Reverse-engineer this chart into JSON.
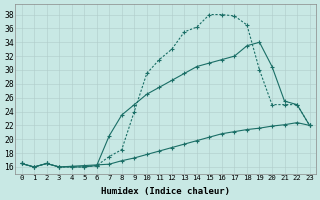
{
  "xlabel": "Humidex (Indice chaleur)",
  "bg_color": "#c8e8e4",
  "line_color": "#1a6e66",
  "xlim": [
    -0.5,
    23.5
  ],
  "ylim": [
    15.0,
    39.5
  ],
  "xticks": [
    0,
    1,
    2,
    3,
    4,
    5,
    6,
    7,
    8,
    9,
    10,
    11,
    12,
    13,
    14,
    15,
    16,
    17,
    18,
    19,
    20,
    21,
    22,
    23
  ],
  "yticks": [
    16,
    18,
    20,
    22,
    24,
    26,
    28,
    30,
    32,
    34,
    36,
    38
  ],
  "curve_upper_x": [
    0,
    1,
    2,
    3,
    4,
    5,
    6,
    7,
    8,
    9,
    10,
    11,
    12,
    13,
    14,
    15,
    16,
    17,
    18,
    19,
    20,
    21,
    22,
    23
  ],
  "curve_upper_y": [
    16.5,
    16.0,
    16.5,
    16.0,
    16.0,
    16.0,
    16.2,
    17.5,
    18.5,
    24.0,
    29.5,
    31.5,
    33.0,
    35.5,
    36.2,
    38.0,
    38.0,
    37.8,
    36.5,
    30.0,
    25.0,
    25.0,
    25.0,
    22.0
  ],
  "curve_mid_x": [
    0,
    1,
    2,
    3,
    4,
    5,
    6,
    7,
    8,
    9,
    10,
    11,
    12,
    13,
    14,
    15,
    16,
    17,
    18,
    19,
    20,
    21,
    22,
    23
  ],
  "curve_mid_y": [
    16.5,
    16.0,
    16.5,
    16.0,
    16.0,
    16.0,
    16.2,
    20.5,
    23.5,
    25.0,
    26.5,
    27.5,
    28.5,
    29.5,
    30.5,
    31.0,
    31.5,
    32.0,
    33.5,
    34.0,
    30.5,
    25.5,
    25.0,
    22.0
  ],
  "curve_low_x": [
    0,
    1,
    2,
    3,
    4,
    5,
    6,
    7,
    8,
    9,
    10,
    11,
    12,
    13,
    14,
    15,
    16,
    17,
    18,
    19,
    20,
    21,
    22,
    23
  ],
  "curve_low_y": [
    16.5,
    16.0,
    16.5,
    16.0,
    16.1,
    16.2,
    16.3,
    16.4,
    16.9,
    17.3,
    17.8,
    18.3,
    18.8,
    19.3,
    19.8,
    20.3,
    20.8,
    21.1,
    21.4,
    21.6,
    21.9,
    22.1,
    22.4,
    22.0
  ]
}
